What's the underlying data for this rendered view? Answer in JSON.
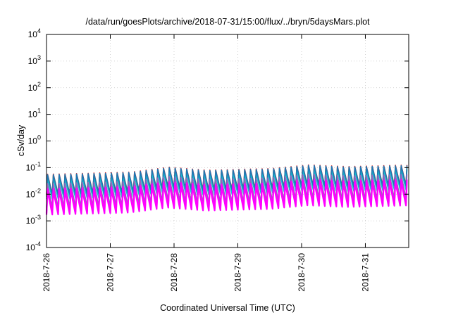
{
  "chart_data": {
    "type": "line",
    "title": "/data/run/goesPlots/archive/2018-07-31/15:00/flux/../bryn/5daysMars.plot",
    "xlabel": "Coordinated Universal Time (UTC)",
    "ylabel": "cSv/day",
    "y_scale": "log",
    "ylim_exp": [
      -4,
      4
    ],
    "y_ticks": [
      {
        "base": "10",
        "exp": "-4"
      },
      {
        "base": "10",
        "exp": "-3"
      },
      {
        "base": "10",
        "exp": "-2"
      },
      {
        "base": "10",
        "exp": "-1"
      },
      {
        "base": "10",
        "exp": "0"
      },
      {
        "base": "10",
        "exp": "1"
      },
      {
        "base": "10",
        "exp": "2"
      },
      {
        "base": "10",
        "exp": "3"
      },
      {
        "base": "10",
        "exp": "4"
      }
    ],
    "x_range_days": [
      0,
      5.68
    ],
    "x_ticks": [
      {
        "day": 0,
        "label": "2018-7-26"
      },
      {
        "day": 1,
        "label": "2018-7-27"
      },
      {
        "day": 2,
        "label": "2018-7-28"
      },
      {
        "day": 3,
        "label": "2018-7-29"
      },
      {
        "day": 4,
        "label": "2018-7-30"
      },
      {
        "day": 5,
        "label": "2018-7-31"
      }
    ],
    "grid": true,
    "legend": "none",
    "oscillation": {
      "cycles_per_day": 11,
      "peak_log_start": -1.25,
      "peak_log_end": -0.9,
      "peak_log_bumps": [
        {
          "day": 1.9,
          "delta": 0.15
        },
        {
          "day": 4.1,
          "delta": 0.1
        }
      ],
      "trough_offset": 0.75
    },
    "series": [
      {
        "color": "#d62728",
        "offset": 0.0
      },
      {
        "color": "#ff7f0e",
        "offset": -0.05
      },
      {
        "color": "#2ca02c",
        "offset": -0.1
      },
      {
        "color": "#17becf",
        "offset": -0.18
      },
      {
        "color": "#1f77b4",
        "offset": -0.02
      },
      {
        "color": "#9467bd",
        "offset": -0.35
      },
      {
        "color": "#ff00ff",
        "offset": -0.55
      },
      {
        "color": "#ff00ff",
        "offset": -0.62
      }
    ]
  }
}
